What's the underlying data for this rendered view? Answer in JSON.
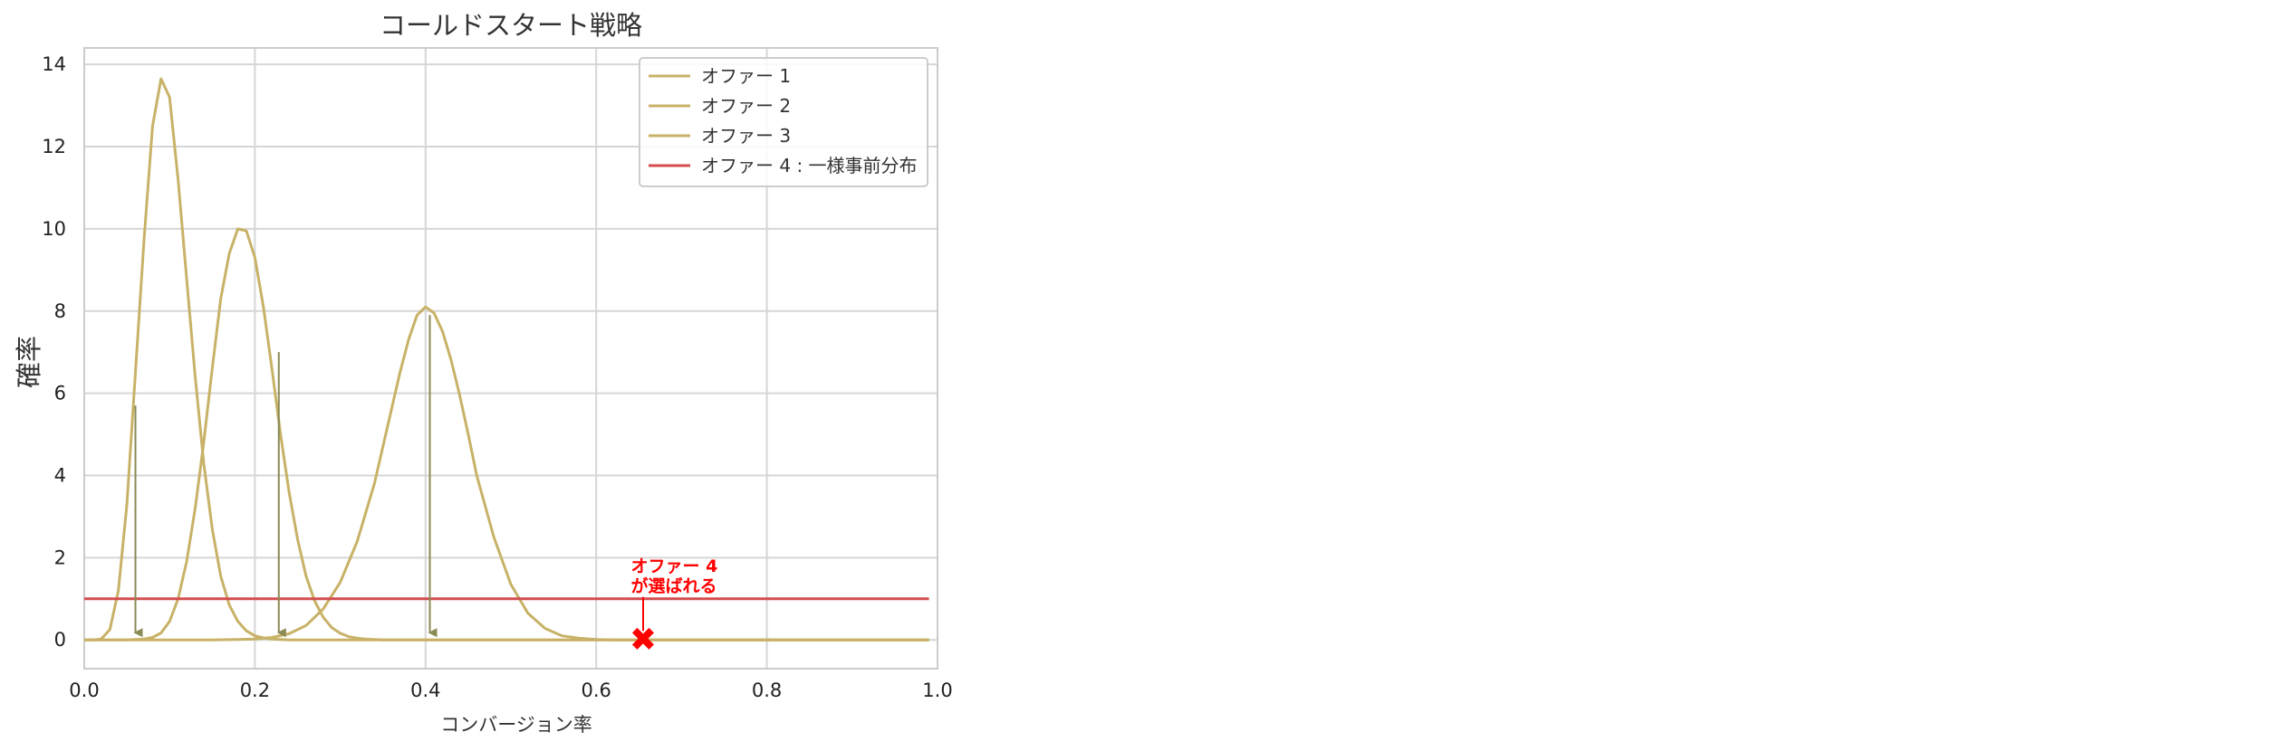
{
  "chart_data": {
    "type": "line",
    "title": "コールドスタート戦略",
    "xlabel": "コンバージョン率",
    "ylabel": "確率",
    "xlim": [
      0.0,
      1.0
    ],
    "ylim": [
      -0.7,
      14.4
    ],
    "x_ticks": [
      "0.0",
      "0.2",
      "0.4",
      "0.6",
      "0.8",
      "1.0"
    ],
    "x_tick_values": [
      0.0,
      0.2,
      0.4,
      0.6,
      0.8,
      1.0
    ],
    "y_ticks": [
      "0",
      "2",
      "4",
      "6",
      "8",
      "10",
      "12",
      "14"
    ],
    "y_tick_values": [
      0,
      2,
      4,
      6,
      8,
      10,
      12,
      14
    ],
    "grid": true,
    "legend_position": "top-right",
    "series": [
      {
        "name": "オファー 1",
        "color": "#c8b267",
        "x": [
          0.0,
          0.01,
          0.02,
          0.03,
          0.04,
          0.05,
          0.06,
          0.07,
          0.08,
          0.09,
          0.1,
          0.11,
          0.12,
          0.13,
          0.14,
          0.15,
          0.16,
          0.17,
          0.18,
          0.19,
          0.2,
          0.21,
          0.22,
          0.23,
          0.24,
          0.25,
          0.26,
          0.28,
          0.3,
          0.35,
          0.4,
          0.5,
          0.6,
          0.7,
          0.8,
          0.9,
          0.99
        ],
        "y": [
          0.0,
          0.0,
          0.02,
          0.25,
          1.2,
          3.3,
          6.5,
          9.7,
          12.5,
          13.65,
          13.2,
          11.2,
          8.8,
          6.4,
          4.3,
          2.7,
          1.55,
          0.85,
          0.45,
          0.22,
          0.1,
          0.05,
          0.02,
          0.01,
          0.0,
          0.0,
          0.0,
          0.0,
          0.0,
          0.0,
          0.0,
          0.0,
          0.0,
          0.0,
          0.0,
          0.0,
          0.0
        ]
      },
      {
        "name": "オファー 2",
        "color": "#c8b267",
        "x": [
          0.0,
          0.05,
          0.07,
          0.08,
          0.09,
          0.1,
          0.11,
          0.12,
          0.13,
          0.14,
          0.15,
          0.16,
          0.17,
          0.18,
          0.19,
          0.2,
          0.21,
          0.22,
          0.23,
          0.24,
          0.25,
          0.26,
          0.27,
          0.28,
          0.29,
          0.3,
          0.31,
          0.32,
          0.33,
          0.34,
          0.35,
          0.37,
          0.4,
          0.5,
          0.6,
          0.7,
          0.8,
          0.9,
          0.99
        ],
        "y": [
          0.0,
          0.0,
          0.02,
          0.06,
          0.17,
          0.45,
          1.0,
          1.9,
          3.2,
          4.8,
          6.6,
          8.3,
          9.4,
          10.0,
          9.95,
          9.3,
          8.1,
          6.6,
          5.0,
          3.6,
          2.45,
          1.55,
          0.95,
          0.55,
          0.3,
          0.16,
          0.08,
          0.04,
          0.02,
          0.01,
          0.0,
          0.0,
          0.0,
          0.0,
          0.0,
          0.0,
          0.0,
          0.0,
          0.0
        ]
      },
      {
        "name": "オファー 3",
        "color": "#c8b267",
        "x": [
          0.0,
          0.15,
          0.18,
          0.2,
          0.22,
          0.24,
          0.26,
          0.28,
          0.3,
          0.32,
          0.34,
          0.35,
          0.36,
          0.37,
          0.38,
          0.39,
          0.4,
          0.41,
          0.42,
          0.43,
          0.44,
          0.45,
          0.46,
          0.48,
          0.5,
          0.52,
          0.54,
          0.56,
          0.58,
          0.6,
          0.62,
          0.65,
          0.7,
          0.8,
          0.9,
          0.99
        ],
        "y": [
          0.0,
          0.0,
          0.01,
          0.02,
          0.06,
          0.15,
          0.35,
          0.75,
          1.4,
          2.4,
          3.8,
          4.7,
          5.6,
          6.5,
          7.3,
          7.9,
          8.1,
          7.95,
          7.5,
          6.8,
          5.95,
          5.0,
          4.0,
          2.5,
          1.35,
          0.65,
          0.28,
          0.1,
          0.04,
          0.01,
          0.0,
          0.0,
          0.0,
          0.0,
          0.0,
          0.0
        ]
      },
      {
        "name": "オファー 4 : 一様事前分布",
        "color": "#d44d4d",
        "x": [
          0.0,
          0.99
        ],
        "y": [
          1.0,
          1.0
        ]
      }
    ],
    "sample_arrows": [
      {
        "x": 0.06,
        "y_from": 5.7,
        "y_to": 0.0,
        "color": "#8a8a55"
      },
      {
        "x": 0.228,
        "y_from": 7.0,
        "y_to": 0.0,
        "color": "#8a8a55"
      },
      {
        "x": 0.405,
        "y_from": 7.9,
        "y_to": 0.0,
        "color": "#8a8a55"
      }
    ],
    "annotation": {
      "text_line1": "オファー 4",
      "text_line2": "が選ばれる",
      "color": "#ff0000",
      "point_x": 0.655,
      "point_y": 0.0,
      "marker": "✖",
      "label_x": 0.63,
      "label_y": 1.0
    }
  }
}
